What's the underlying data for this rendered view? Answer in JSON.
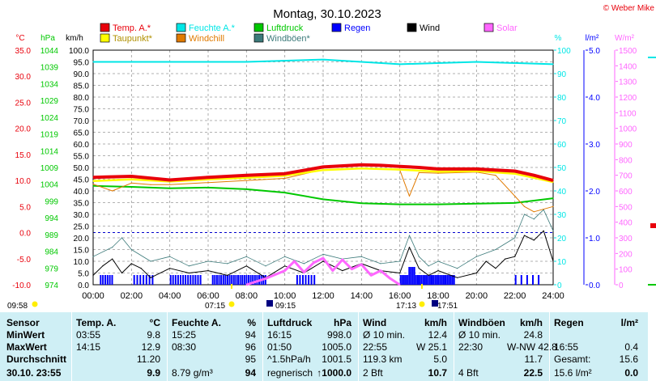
{
  "title": "Montag, 30.10.2023",
  "copyright": "© Weber Mike",
  "colors": {
    "temp": "#e8000b",
    "dewpoint": "#ffff00",
    "humidity": "#00e6e6",
    "windchill": "#e07a00",
    "pressure": "#00c800",
    "gust": "#3c7a7a",
    "rain": "#0000ff",
    "wind": "#000000",
    "solar": "#ff66ff",
    "table_bg": "#cfeff5"
  },
  "legend": [
    {
      "label": "Temp. A.*",
      "color": "#e8000b"
    },
    {
      "label": "Feuchte A.*",
      "color": "#00e6e6"
    },
    {
      "label": "Luftdruck",
      "color": "#00c800"
    },
    {
      "label": "Regen",
      "color": "#0000ff"
    },
    {
      "label": "Wind",
      "color": "#000000"
    },
    {
      "label": "Solar",
      "color": "#ff66ff"
    },
    {
      "label": "Taupunkt*",
      "color": "#ffff00"
    },
    {
      "label": "Windchill",
      "color": "#e07a00"
    },
    {
      "label": "Windböen*",
      "color": "#3c7a7a"
    }
  ],
  "axes": {
    "temp": {
      "unit": "°C",
      "ticks": [
        "35.0",
        "30.0",
        "25.0",
        "20.0",
        "15.0",
        "10.0",
        "5.0",
        "0.0",
        "-5.0",
        "-10.0"
      ]
    },
    "pressure": {
      "unit": "hPa",
      "ticks": [
        "1044",
        "1039",
        "1034",
        "1029",
        "1024",
        "1019",
        "1014",
        "1009",
        "1004",
        "999",
        "994",
        "989",
        "984",
        "979",
        "974"
      ]
    },
    "wind": {
      "unit": "km/h",
      "ticks": [
        "100.0",
        "95.0",
        "90.0",
        "85.0",
        "80.0",
        "75.0",
        "70.0",
        "65.0",
        "60.0",
        "55.0",
        "50.0",
        "45.0",
        "40.0",
        "35.0",
        "30.0",
        "25.0",
        "20.0",
        "15.0",
        "10.0",
        "5.0",
        "0.0"
      ]
    },
    "humidity": {
      "unit": "%",
      "ticks": [
        "100",
        "90",
        "80",
        "70",
        "60",
        "50",
        "40",
        "30",
        "20",
        "10",
        "0"
      ]
    },
    "rain": {
      "unit": "l/m²",
      "ticks": [
        "5.0",
        "4.0",
        "3.0",
        "2.0",
        "1.0",
        "0.0"
      ]
    },
    "solar": {
      "unit": "W/m²",
      "ticks": [
        "1500",
        "1400",
        "1300",
        "1200",
        "1100",
        "1000",
        "900",
        "800",
        "700",
        "600",
        "500",
        "400",
        "300",
        "200",
        "100",
        "0"
      ]
    },
    "x_ticks": [
      "00:00",
      "02:00",
      "04:00",
      "06:00",
      "08:00",
      "10:00",
      "12:00",
      "14:00",
      "16:00",
      "18:00",
      "20:00",
      "22:00",
      "24:00"
    ]
  },
  "astro": [
    {
      "label": "09:58"
    },
    {
      "label": "07:15"
    },
    {
      "label": "09:15"
    },
    {
      "label": "17:13"
    },
    {
      "label": "17:51"
    }
  ],
  "chart_data": {
    "type": "line",
    "x_unit": "hour of day",
    "series": [
      {
        "name": "Temp. A.",
        "unit": "°C",
        "x": [
          0,
          2,
          4,
          6,
          8,
          10,
          12,
          14,
          15,
          16,
          17,
          18,
          19,
          20,
          21,
          22,
          23,
          24
        ],
        "values": [
          10.6,
          10.8,
          10.1,
          10.6,
          11.0,
          11.3,
          12.6,
          13.0,
          12.9,
          12.7,
          12.5,
          12.2,
          12.2,
          12.2,
          12.0,
          11.8,
          11.0,
          10.0
        ]
      },
      {
        "name": "Taupunkt",
        "unit": "°C",
        "x": [
          0,
          2,
          4,
          6,
          8,
          10,
          12,
          14,
          16,
          18,
          20,
          22,
          24
        ],
        "values": [
          9.9,
          10.2,
          9.8,
          10.2,
          10.5,
          10.9,
          12.0,
          12.3,
          12.1,
          11.7,
          11.8,
          11.3,
          9.7
        ]
      },
      {
        "name": "Windchill",
        "unit": "°C",
        "x": [
          0,
          1,
          2,
          3,
          4,
          6,
          8,
          10,
          12,
          14,
          16,
          16.5,
          17,
          18,
          20,
          21,
          22,
          22.5,
          23,
          24
        ],
        "values": [
          9.3,
          8.0,
          9.5,
          9.2,
          9.2,
          9.6,
          10.0,
          10.4,
          12.1,
          12.4,
          12.0,
          7.0,
          11.5,
          11.4,
          11.6,
          11.0,
          7.0,
          5.0,
          4.0,
          5.0
        ]
      },
      {
        "name": "Feuchte A.",
        "unit": "%",
        "x": [
          0,
          4,
          8,
          12,
          16,
          20,
          24
        ],
        "values": [
          95,
          95,
          95,
          96,
          94,
          95,
          94
        ]
      },
      {
        "name": "Luftdruck",
        "unit": "hPa",
        "x": [
          0,
          2,
          4,
          6,
          8,
          10,
          12,
          14,
          16,
          18,
          20,
          22,
          24
        ],
        "values": [
          1003.5,
          1003.2,
          1002.8,
          1003.0,
          1002.5,
          1001.5,
          999.5,
          998.3,
          998.0,
          998.0,
          998.2,
          998.4,
          999.8
        ]
      },
      {
        "name": "Wind",
        "unit": "km/h",
        "x": [
          0,
          0.5,
          1,
          1.5,
          2,
          2.5,
          3,
          4,
          5,
          6,
          7,
          8,
          9,
          10,
          11,
          12,
          13,
          14,
          15,
          16,
          16.5,
          17,
          17.5,
          18,
          19,
          20,
          20.5,
          21,
          21.5,
          22,
          22.5,
          23,
          23.5,
          24
        ],
        "values": [
          4,
          8,
          11,
          5,
          9,
          7,
          3,
          7,
          5,
          6,
          4,
          8,
          3,
          8,
          5,
          10,
          6,
          9,
          6,
          5,
          16,
          7,
          4,
          6,
          3,
          5,
          10,
          7,
          11,
          12,
          21,
          19,
          23,
          10
        ]
      },
      {
        "name": "Windböen",
        "unit": "km/h",
        "x": [
          0,
          1,
          1.5,
          2,
          3,
          4,
          5,
          6,
          7,
          8,
          9,
          10,
          11,
          12,
          13,
          14,
          15,
          16,
          16.5,
          17,
          17.5,
          18,
          19,
          20,
          21,
          22,
          22.5,
          23,
          23.5,
          24
        ],
        "values": [
          12,
          16,
          20,
          15,
          10,
          12,
          8,
          10,
          9,
          12,
          8,
          12,
          9,
          13,
          11,
          12,
          9,
          10,
          21,
          12,
          8,
          10,
          7,
          12,
          15,
          20,
          30,
          28,
          32,
          23
        ]
      },
      {
        "name": "Solar",
        "unit": "W/m²",
        "x": [
          8,
          9,
          10,
          10.5,
          11,
          11.5,
          12,
          12.5,
          13,
          13.5,
          14,
          14.5,
          15,
          15.5,
          16
        ],
        "values": [
          0,
          40,
          90,
          150,
          80,
          140,
          170,
          90,
          160,
          100,
          130,
          60,
          90,
          40,
          0
        ]
      },
      {
        "name": "Regen",
        "unit": "l/m²",
        "note": "rain rate bars"
      }
    ]
  },
  "table": {
    "columns": [
      "Sensor",
      "Temp. A.",
      "°C",
      "Feuchte A.",
      "%",
      "Luftdruck",
      "hPa",
      "Wind",
      "km/h",
      "Windböen",
      "km/h",
      "Regen",
      "l/m²"
    ],
    "rows": [
      {
        "label": "MinWert",
        "cells": [
          "03:55",
          "9.8",
          "15:25",
          "94",
          "16:15",
          "998.0",
          "Ø 10 min.",
          "12.4",
          "Ø 10 min.",
          "24.8",
          "",
          ""
        ]
      },
      {
        "label": "MaxWert",
        "cells": [
          "14:15",
          "12.9",
          "08:30",
          "96",
          "01:50",
          "1005.0",
          "22:55",
          "W 25.1",
          "22:30",
          "W-NW 42.8",
          "16:55",
          "0.4"
        ]
      },
      {
        "label": "Durchschnitt",
        "cells": [
          "",
          "11.20",
          "",
          "95",
          "^1.5hPa/h",
          "1001.5",
          "119.3 km",
          "5.0",
          "",
          "11.7",
          "Gesamt:",
          "15.6"
        ]
      },
      {
        "label": "30.10. 23:55",
        "cells": [
          "",
          "9.9",
          "8.79 g/m³",
          "94",
          "regnerisch",
          "↑1000.0",
          "2 Bft",
          "10.7",
          "4 Bft",
          "22.5",
          "15.6 l/m²",
          "0.0"
        ]
      }
    ]
  }
}
